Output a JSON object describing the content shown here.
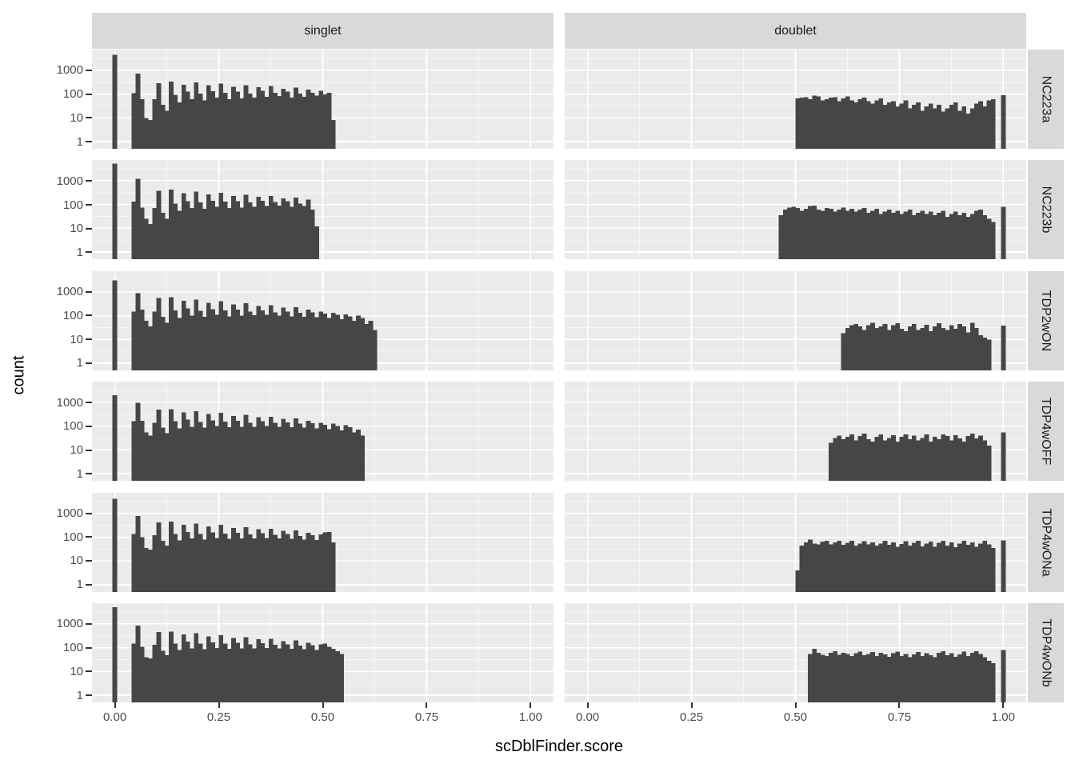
{
  "figure": {
    "x_axis_title": "scDblFinder.score",
    "y_axis_title": "count",
    "col_facets": [
      "singlet",
      "doublet"
    ],
    "row_facets": [
      "NC223a",
      "NC223b",
      "TDP2wON",
      "TDP4wOFF",
      "TDP4wONa",
      "TDP4wONb"
    ],
    "x_ticks": [
      "0.00",
      "0.25",
      "0.50",
      "0.75",
      "1.00"
    ],
    "x_tick_values": [
      0,
      0.25,
      0.5,
      0.75,
      1.0
    ],
    "y_ticks": [
      "1000",
      "100",
      "10",
      "1"
    ],
    "y_tick_logs": [
      3,
      2,
      1,
      0
    ],
    "colors": {
      "bar": "#464646",
      "panel_bg": "#ebebeb",
      "strip_bg": "#d9d9d9",
      "grid_major": "#ffffff",
      "grid_minor": "#f7f7f7",
      "axis_text": "#4d4d4d",
      "tick_mark": "#333333",
      "title_text": "#000000"
    }
  },
  "chart_data": {
    "type": "histogram-grid",
    "title": "",
    "xlabel": "scDblFinder.score",
    "ylabel": "count",
    "x_domain": [
      -0.055,
      1.055
    ],
    "y_scale": "log10",
    "y_range": [
      1,
      7400
    ],
    "binwidth": 0.01,
    "grid": "on",
    "facet_cols": [
      "singlet",
      "doublet"
    ],
    "facet_rows": [
      "NC223a",
      "NC223b",
      "TDP2wON",
      "TDP4wOFF",
      "TDP4wONa",
      "TDP4wONb"
    ],
    "panels": [
      {
        "row": "NC223a",
        "col": "singlet",
        "zero_spike": 4500,
        "start": 0.04,
        "counts": [
          110,
          740,
          62,
          10,
          8,
          60,
          290,
          35,
          20,
          330,
          95,
          45,
          250,
          125,
          60,
          310,
          105,
          55,
          235,
          130,
          70,
          280,
          115,
          60,
          205,
          125,
          65,
          240,
          105,
          72,
          195,
          135,
          78,
          215,
          115,
          82,
          165,
          125,
          72,
          185,
          105,
          78,
          155,
          115,
          85,
          135,
          98,
          115,
          8
        ]
      },
      {
        "row": "NC223a",
        "col": "doublet",
        "one_spike": 90,
        "start": 0.5,
        "counts": [
          65,
          70,
          75,
          60,
          85,
          80,
          55,
          60,
          70,
          75,
          50,
          65,
          80,
          55,
          45,
          60,
          70,
          50,
          40,
          55,
          65,
          35,
          45,
          50,
          30,
          40,
          55,
          25,
          35,
          45,
          20,
          30,
          40,
          25,
          35,
          18,
          25,
          35,
          45,
          20,
          30,
          15,
          25,
          40,
          50,
          30,
          55,
          60
        ]
      },
      {
        "row": "NC223b",
        "col": "singlet",
        "zero_spike": 5200,
        "start": 0.04,
        "counts": [
          130,
          1200,
          75,
          25,
          15,
          70,
          380,
          45,
          25,
          430,
          110,
          55,
          300,
          140,
          70,
          350,
          120,
          65,
          270,
          145,
          80,
          310,
          130,
          70,
          230,
          140,
          75,
          260,
          120,
          80,
          210,
          145,
          85,
          230,
          125,
          90,
          180,
          135,
          80,
          195,
          110,
          85,
          160,
          60,
          12
        ]
      },
      {
        "row": "NC223b",
        "col": "doublet",
        "one_spike": 80,
        "start": 0.46,
        "counts": [
          35,
          60,
          75,
          80,
          70,
          55,
          65,
          85,
          90,
          60,
          55,
          70,
          65,
          50,
          60,
          75,
          55,
          65,
          50,
          60,
          70,
          45,
          55,
          65,
          40,
          50,
          60,
          45,
          55,
          40,
          50,
          60,
          35,
          45,
          55,
          40,
          50,
          35,
          45,
          55,
          30,
          40,
          50,
          35,
          45,
          30,
          40,
          55,
          60,
          35,
          25,
          18
        ]
      },
      {
        "row": "TDP2wON",
        "col": "singlet",
        "zero_spike": 3000,
        "start": 0.04,
        "counts": [
          150,
          900,
          180,
          60,
          35,
          150,
          550,
          90,
          50,
          600,
          170,
          80,
          420,
          200,
          100,
          480,
          160,
          90,
          350,
          190,
          110,
          400,
          170,
          95,
          300,
          180,
          100,
          330,
          150,
          105,
          260,
          170,
          110,
          280,
          140,
          100,
          220,
          150,
          95,
          230,
          130,
          90,
          180,
          140,
          85,
          150,
          120,
          80,
          130,
          110,
          70,
          115,
          95,
          60,
          100,
          80,
          45,
          60,
          25
        ]
      },
      {
        "row": "TDP2wON",
        "col": "doublet",
        "one_spike": 38,
        "start": 0.61,
        "counts": [
          18,
          30,
          40,
          45,
          35,
          25,
          40,
          50,
          30,
          35,
          45,
          25,
          40,
          48,
          28,
          22,
          35,
          45,
          25,
          30,
          42,
          22,
          35,
          48,
          30,
          25,
          40,
          28,
          45,
          35,
          20,
          50,
          30,
          15,
          12,
          10
        ]
      },
      {
        "row": "TDP4wOFF",
        "col": "singlet",
        "zero_spike": 2000,
        "start": 0.04,
        "counts": [
          160,
          950,
          170,
          55,
          40,
          140,
          500,
          85,
          50,
          520,
          160,
          80,
          380,
          190,
          95,
          430,
          150,
          85,
          320,
          175,
          100,
          360,
          155,
          90,
          270,
          165,
          95,
          300,
          140,
          95,
          240,
          160,
          100,
          250,
          135,
          95,
          200,
          145,
          90,
          210,
          125,
          85,
          170,
          130,
          80,
          140,
          115,
          75,
          125,
          100,
          65,
          110,
          90,
          55,
          70,
          40
        ]
      },
      {
        "row": "TDP4wOFF",
        "col": "doublet",
        "one_spike": 55,
        "start": 0.58,
        "counts": [
          20,
          32,
          40,
          28,
          35,
          45,
          25,
          38,
          48,
          28,
          22,
          35,
          45,
          25,
          32,
          42,
          22,
          35,
          45,
          28,
          40,
          25,
          32,
          45,
          22,
          35,
          28,
          45,
          38,
          25,
          42,
          30,
          22,
          38,
          48,
          30,
          40,
          25,
          15
        ]
      },
      {
        "row": "TDP4wONa",
        "col": "singlet",
        "zero_spike": 4200,
        "start": 0.04,
        "counts": [
          140,
          800,
          100,
          35,
          30,
          120,
          420,
          70,
          45,
          460,
          140,
          75,
          340,
          170,
          90,
          380,
          140,
          80,
          290,
          160,
          95,
          330,
          145,
          85,
          250,
          155,
          90,
          270,
          130,
          90,
          220,
          150,
          95,
          230,
          125,
          90,
          185,
          135,
          85,
          195,
          115,
          80,
          155,
          120,
          78,
          130,
          160,
          170,
          60
        ]
      },
      {
        "row": "TDP4wONa",
        "col": "doublet",
        "one_spike": 75,
        "start": 0.5,
        "counts": [
          4,
          45,
          60,
          80,
          55,
          50,
          65,
          70,
          50,
          60,
          72,
          48,
          58,
          70,
          45,
          55,
          68,
          50,
          62,
          45,
          55,
          70,
          48,
          60,
          40,
          52,
          68,
          45,
          58,
          72,
          42,
          55,
          65,
          40,
          58,
          70,
          45,
          60,
          38,
          55,
          72,
          48,
          62,
          40,
          55,
          70,
          50,
          35
        ]
      },
      {
        "row": "TDP4wONb",
        "col": "singlet",
        "zero_spike": 5000,
        "start": 0.04,
        "counts": [
          150,
          850,
          110,
          40,
          35,
          130,
          450,
          75,
          48,
          480,
          150,
          80,
          360,
          180,
          92,
          400,
          150,
          85,
          300,
          165,
          98,
          340,
          150,
          88,
          260,
          160,
          92,
          280,
          135,
          92,
          230,
          155,
          98,
          240,
          130,
          92,
          190,
          140,
          88,
          200,
          120,
          85,
          160,
          125,
          80,
          135,
          150,
          110,
          90,
          70,
          55
        ]
      },
      {
        "row": "TDP4wONb",
        "col": "doublet",
        "one_spike": 80,
        "start": 0.53,
        "counts": [
          55,
          90,
          60,
          50,
          45,
          60,
          70,
          50,
          62,
          55,
          45,
          58,
          68,
          48,
          55,
          65,
          45,
          60,
          52,
          42,
          58,
          68,
          45,
          55,
          40,
          52,
          65,
          45,
          58,
          48,
          40,
          60,
          70,
          48,
          58,
          42,
          52,
          68,
          45,
          60,
          72,
          55,
          40,
          28,
          22
        ]
      }
    ]
  }
}
